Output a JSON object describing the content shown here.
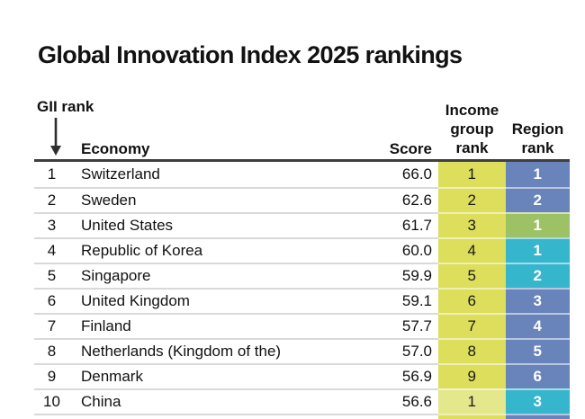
{
  "title": "Global Innovation Index 2025 rankings",
  "table": {
    "gii_rank_label": "GII rank",
    "gii_rank_arrow": "down-arrow",
    "headers": {
      "economy": "Economy",
      "score": "Score",
      "income_lines": [
        "Income",
        "group",
        "rank"
      ],
      "region_lines": [
        "Region",
        "rank"
      ]
    },
    "rows": [
      {
        "rank": "1",
        "economy": "Switzerland",
        "score": "66.0",
        "income_rank": "1",
        "income_color": "high",
        "region_rank": "1",
        "region_color": "blue"
      },
      {
        "rank": "2",
        "economy": "Sweden",
        "score": "62.6",
        "income_rank": "2",
        "income_color": "high",
        "region_rank": "2",
        "region_color": "blue"
      },
      {
        "rank": "3",
        "economy": "United States",
        "score": "61.7",
        "income_rank": "3",
        "income_color": "high",
        "region_rank": "1",
        "region_color": "green"
      },
      {
        "rank": "4",
        "economy": "Republic of Korea",
        "score": "60.0",
        "income_rank": "4",
        "income_color": "high",
        "region_rank": "1",
        "region_color": "teal"
      },
      {
        "rank": "5",
        "economy": "Singapore",
        "score": "59.9",
        "income_rank": "5",
        "income_color": "high",
        "region_rank": "2",
        "region_color": "teal"
      },
      {
        "rank": "6",
        "economy": "United Kingdom",
        "score": "59.1",
        "income_rank": "6",
        "income_color": "high",
        "region_rank": "3",
        "region_color": "blue"
      },
      {
        "rank": "7",
        "economy": "Finland",
        "score": "57.7",
        "income_rank": "7",
        "income_color": "high",
        "region_rank": "4",
        "region_color": "blue"
      },
      {
        "rank": "8",
        "economy": "Netherlands (Kingdom of the)",
        "score": "57.0",
        "income_rank": "8",
        "income_color": "high",
        "region_rank": "5",
        "region_color": "blue"
      },
      {
        "rank": "9",
        "economy": "Denmark",
        "score": "56.9",
        "income_rank": "9",
        "income_color": "high",
        "region_rank": "6",
        "region_color": "blue"
      },
      {
        "rank": "10",
        "economy": "China",
        "score": "56.6",
        "income_rank": "1",
        "income_color": "upper_middle",
        "region_rank": "3",
        "region_color": "teal"
      }
    ],
    "partial_row": {
      "income_color": "high",
      "region_color": "blue"
    }
  },
  "colors": {
    "income": {
      "high": "#dcde5c",
      "upper_middle": "#e5e78c"
    },
    "region": {
      "blue": "#6884ba",
      "green": "#9dc266",
      "teal": "#35b6cd"
    },
    "header_rule": "#3f3f3f",
    "row_divider": "#d9d9d9",
    "region_text": "#ffffff"
  },
  "chart_data": {
    "type": "table",
    "title": "Global Innovation Index 2025 rankings",
    "columns": [
      "GII rank",
      "Economy",
      "Score",
      "Income group rank",
      "Region rank"
    ],
    "rows": [
      [
        1,
        "Switzerland",
        66.0,
        1,
        1
      ],
      [
        2,
        "Sweden",
        62.6,
        2,
        2
      ],
      [
        3,
        "United States",
        61.7,
        3,
        1
      ],
      [
        4,
        "Republic of Korea",
        60.0,
        4,
        1
      ],
      [
        5,
        "Singapore",
        59.9,
        5,
        2
      ],
      [
        6,
        "United Kingdom",
        59.1,
        6,
        3
      ],
      [
        7,
        "Finland",
        57.7,
        7,
        4
      ],
      [
        8,
        "Netherlands (Kingdom of the)",
        57.0,
        8,
        5
      ],
      [
        9,
        "Denmark",
        56.9,
        9,
        6
      ],
      [
        10,
        "China",
        56.6,
        1,
        3
      ]
    ],
    "cell_fill_colors": {
      "income_group_rank": [
        "#dcde5c",
        "#dcde5c",
        "#dcde5c",
        "#dcde5c",
        "#dcde5c",
        "#dcde5c",
        "#dcde5c",
        "#dcde5c",
        "#dcde5c",
        "#e5e78c"
      ],
      "region_rank": [
        "#6884ba",
        "#6884ba",
        "#9dc266",
        "#35b6cd",
        "#35b6cd",
        "#6884ba",
        "#6884ba",
        "#6884ba",
        "#6884ba",
        "#35b6cd"
      ]
    }
  }
}
